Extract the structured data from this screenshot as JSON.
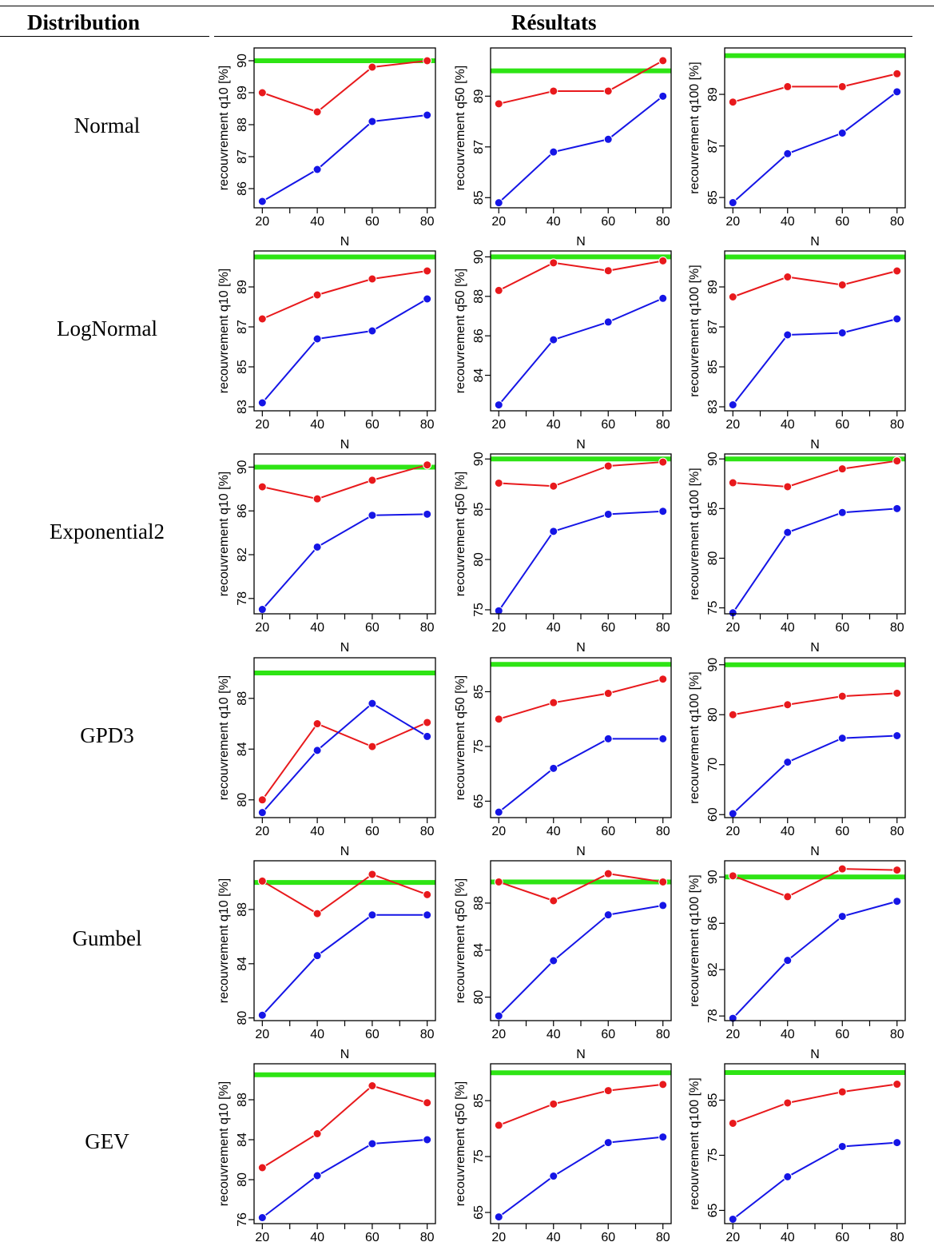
{
  "header": {
    "distribution": "Distribution",
    "results": "Résultats"
  },
  "colors": {
    "series_a": "#e8191c",
    "series_b": "#1515e6",
    "target": "#2ee414"
  },
  "xlabel": "N",
  "chart_data": [
    {
      "row": "Normal",
      "type": "line",
      "ylabel": "recouvrement q10 [%]",
      "x": [
        20,
        40,
        60,
        80
      ],
      "ylim": [
        85.4,
        90.4
      ],
      "yticks": [
        86,
        87,
        88,
        89,
        90
      ],
      "target": 90,
      "series": [
        {
          "values": [
            89.0,
            88.4,
            89.8,
            90.0
          ]
        },
        {
          "values": [
            85.6,
            86.6,
            88.1,
            88.3
          ]
        }
      ]
    },
    {
      "row": "Normal",
      "type": "line",
      "ylabel": "recouvrement q50 [%]",
      "x": [
        20,
        40,
        60,
        80
      ],
      "ylim": [
        84.6,
        90.9
      ],
      "yticks": [
        85,
        87,
        89
      ],
      "target": 90.0,
      "series": [
        {
          "values": [
            88.7,
            89.2,
            89.2,
            90.4
          ]
        },
        {
          "values": [
            84.8,
            86.8,
            87.3,
            89.0
          ]
        }
      ]
    },
    {
      "row": "Normal",
      "type": "line",
      "ylabel": "recouvrement q100 [%]",
      "x": [
        20,
        40,
        60,
        80
      ],
      "ylim": [
        84.6,
        90.8
      ],
      "yticks": [
        85,
        87,
        89
      ],
      "target": 90.5,
      "series": [
        {
          "values": [
            88.7,
            89.3,
            89.3,
            89.8
          ]
        },
        {
          "values": [
            84.8,
            86.7,
            87.5,
            89.1
          ]
        }
      ]
    },
    {
      "row": "LogNormal",
      "type": "line",
      "ylabel": "recouvrement q10 [%]",
      "x": [
        20,
        40,
        60,
        80
      ],
      "ylim": [
        82.8,
        90.8
      ],
      "yticks": [
        83,
        85,
        87,
        89
      ],
      "target": 90.5,
      "series": [
        {
          "values": [
            87.4,
            88.6,
            89.4,
            89.8
          ]
        },
        {
          "values": [
            83.2,
            86.4,
            86.8,
            88.4
          ]
        }
      ]
    },
    {
      "row": "LogNormal",
      "type": "line",
      "ylabel": "recouvrement q50 [%]",
      "x": [
        20,
        40,
        60,
        80
      ],
      "ylim": [
        82.2,
        90.3
      ],
      "yticks": [
        84,
        86,
        88,
        90
      ],
      "target": 90.0,
      "series": [
        {
          "values": [
            88.3,
            89.7,
            89.3,
            89.8
          ]
        },
        {
          "values": [
            82.5,
            85.8,
            86.7,
            87.9
          ]
        }
      ]
    },
    {
      "row": "LogNormal",
      "type": "line",
      "ylabel": "recouvrement q100 [%]",
      "x": [
        20,
        40,
        60,
        80
      ],
      "ylim": [
        82.8,
        90.8
      ],
      "yticks": [
        83,
        85,
        87,
        89
      ],
      "target": 90.5,
      "series": [
        {
          "values": [
            88.5,
            89.5,
            89.1,
            89.8
          ]
        },
        {
          "values": [
            83.1,
            86.6,
            86.7,
            87.4
          ]
        }
      ]
    },
    {
      "row": "Exponential2",
      "type": "line",
      "ylabel": "recouvrement q10 [%]",
      "x": [
        20,
        40,
        60,
        80
      ],
      "ylim": [
        76.6,
        91.2
      ],
      "yticks": [
        78,
        82,
        86,
        90
      ],
      "target": 90,
      "series": [
        {
          "values": [
            88.2,
            87.1,
            88.8,
            90.2
          ]
        },
        {
          "values": [
            77.0,
            82.7,
            85.6,
            85.7
          ]
        }
      ]
    },
    {
      "row": "Exponential2",
      "type": "line",
      "ylabel": "recouvrement q50 [%]",
      "x": [
        20,
        40,
        60,
        80
      ],
      "ylim": [
        74.6,
        90.5
      ],
      "yticks": [
        75,
        80,
        85,
        90
      ],
      "target": 90.0,
      "series": [
        {
          "values": [
            87.6,
            87.3,
            89.3,
            89.7
          ]
        },
        {
          "values": [
            74.9,
            82.8,
            84.5,
            84.8
          ]
        }
      ]
    },
    {
      "row": "Exponential2",
      "type": "line",
      "ylabel": "recouvrement q100 [%]",
      "x": [
        20,
        40,
        60,
        80
      ],
      "ylim": [
        74.4,
        90.5
      ],
      "yticks": [
        75,
        80,
        85,
        90
      ],
      "target": 90.0,
      "series": [
        {
          "values": [
            87.6,
            87.2,
            89.0,
            89.8
          ]
        },
        {
          "values": [
            74.5,
            82.6,
            84.6,
            85.0
          ]
        }
      ]
    },
    {
      "row": "GPD3",
      "type": "line",
      "ylabel": "recouvrement q10 [%]",
      "x": [
        20,
        40,
        60,
        80
      ],
      "ylim": [
        78.6,
        91.2
      ],
      "yticks": [
        80,
        84,
        88
      ],
      "target": 90,
      "series": [
        {
          "values": [
            80.0,
            86.0,
            84.2,
            86.1
          ]
        },
        {
          "values": [
            79.0,
            83.9,
            87.6,
            85.0
          ]
        }
      ]
    },
    {
      "row": "GPD3",
      "type": "line",
      "ylabel": "recouvrement q50 [%]",
      "x": [
        20,
        40,
        60,
        80
      ],
      "ylim": [
        62.0,
        91.2
      ],
      "yticks": [
        65,
        75,
        85
      ],
      "target": 90,
      "series": [
        {
          "values": [
            80.0,
            83.0,
            84.7,
            87.3
          ]
        },
        {
          "values": [
            63.0,
            71.0,
            76.4,
            76.4
          ]
        }
      ]
    },
    {
      "row": "GPD3",
      "type": "line",
      "ylabel": "recouvrement q100 [%]",
      "x": [
        20,
        40,
        60,
        80
      ],
      "ylim": [
        59.4,
        91.4
      ],
      "yticks": [
        60,
        70,
        80,
        90
      ],
      "target": 90,
      "series": [
        {
          "values": [
            80.0,
            82.0,
            83.7,
            84.3
          ]
        },
        {
          "values": [
            60.2,
            70.5,
            75.3,
            75.8
          ]
        }
      ]
    },
    {
      "row": "Gumbel",
      "type": "line",
      "ylabel": "recouvrement q10 [%]",
      "x": [
        20,
        40,
        60,
        80
      ],
      "ylim": [
        79.8,
        91.6
      ],
      "yticks": [
        80,
        84,
        88
      ],
      "target": 90,
      "series": [
        {
          "values": [
            90.1,
            87.7,
            90.6,
            89.1
          ]
        },
        {
          "values": [
            80.2,
            84.6,
            87.6,
            87.6
          ]
        }
      ]
    },
    {
      "row": "Gumbel",
      "type": "line",
      "ylabel": "recouvrement q50 [%]",
      "x": [
        20,
        40,
        60,
        80
      ],
      "ylim": [
        78.0,
        91.6
      ],
      "yticks": [
        80,
        84,
        88
      ],
      "target": 89.8,
      "series": [
        {
          "values": [
            89.8,
            88.2,
            90.5,
            89.8
          ]
        },
        {
          "values": [
            78.4,
            83.1,
            87.0,
            87.8
          ]
        }
      ]
    },
    {
      "row": "Gumbel",
      "type": "line",
      "ylabel": "recouvrement q100 [%]",
      "x": [
        20,
        40,
        60,
        80
      ],
      "ylim": [
        77.6,
        91.4
      ],
      "yticks": [
        78,
        82,
        86,
        90
      ],
      "target": 90,
      "series": [
        {
          "values": [
            90.1,
            88.3,
            90.7,
            90.6
          ]
        },
        {
          "values": [
            77.8,
            82.8,
            86.6,
            87.9
          ]
        }
      ]
    },
    {
      "row": "GEV",
      "type": "line",
      "ylabel": "recouvrement q10 [%]",
      "x": [
        20,
        40,
        60,
        80
      ],
      "ylim": [
        75.6,
        91.6
      ],
      "yticks": [
        76,
        80,
        84,
        88
      ],
      "target": 90.5,
      "series": [
        {
          "values": [
            81.2,
            84.6,
            89.4,
            87.7
          ]
        },
        {
          "values": [
            76.2,
            80.4,
            83.6,
            84.0
          ]
        }
      ]
    },
    {
      "row": "GEV",
      "type": "line",
      "ylabel": "recouvrement q50 [%]",
      "x": [
        20,
        40,
        60,
        80
      ],
      "ylim": [
        63.0,
        91.6
      ],
      "yticks": [
        65,
        75,
        85
      ],
      "target": 90,
      "series": [
        {
          "values": [
            80.6,
            84.4,
            86.8,
            87.9
          ]
        },
        {
          "values": [
            64.2,
            71.5,
            77.5,
            78.5
          ]
        }
      ]
    },
    {
      "row": "GEV",
      "type": "line",
      "ylabel": "recouvrement q100 [%]",
      "x": [
        20,
        40,
        60,
        80
      ],
      "ylim": [
        62.6,
        91.6
      ],
      "yticks": [
        65,
        75,
        85
      ],
      "target": 90,
      "series": [
        {
          "values": [
            80.8,
            84.5,
            86.5,
            87.9
          ]
        },
        {
          "values": [
            63.4,
            71.1,
            76.6,
            77.3
          ]
        }
      ]
    }
  ]
}
